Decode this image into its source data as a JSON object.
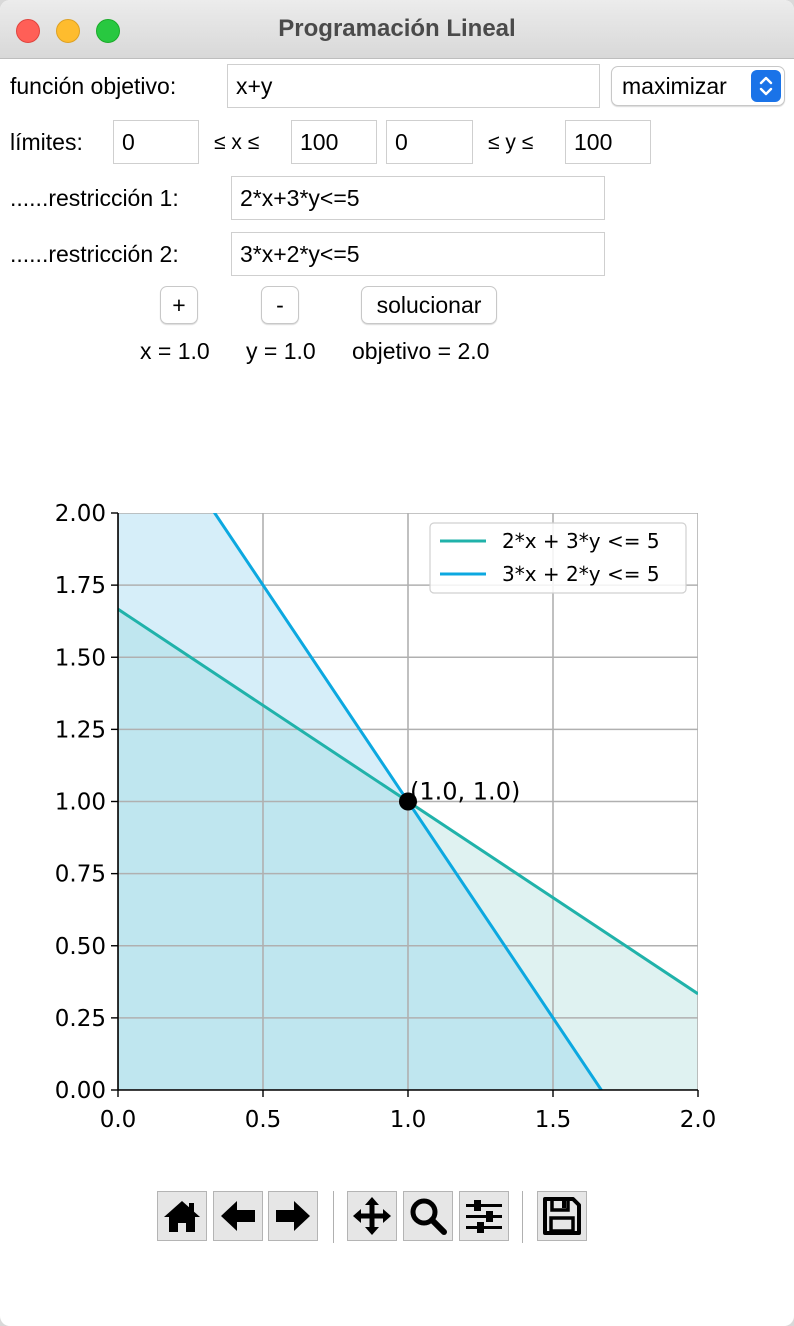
{
  "window": {
    "title": "Programación Lineal"
  },
  "objective": {
    "label": "función objetivo:",
    "value": "x+y",
    "mode": "maximizar"
  },
  "limits": {
    "label": "límites:",
    "x_min": "0",
    "x_symbol": "≤ x ≤",
    "x_max": "100",
    "y_min": "0",
    "y_symbol": "≤ y ≤",
    "y_max": "100"
  },
  "restrictions": [
    {
      "label": "......restricción 1:",
      "value": "2*x+3*y<=5"
    },
    {
      "label": "......restricción 2:",
      "value": "3*x+2*y<=5"
    }
  ],
  "buttons": {
    "add": "+",
    "remove": "-",
    "solve": "solucionar"
  },
  "result": {
    "x": "x = 1.0",
    "y": "y = 1.0",
    "objective": "objetivo = 2.0"
  },
  "chart_data": {
    "type": "line",
    "xlim": [
      0,
      2
    ],
    "ylim": [
      0,
      2
    ],
    "xticks": [
      "0.0",
      "0.5",
      "1.0",
      "1.5",
      "2.0"
    ],
    "yticks": [
      "0.00",
      "0.25",
      "0.50",
      "0.75",
      "1.00",
      "1.25",
      "1.50",
      "1.75",
      "2.00"
    ],
    "grid": true,
    "legend_position": "top-right",
    "series": [
      {
        "name": "2*x + 3*y <= 5",
        "a": 2,
        "b": 3,
        "c": 5,
        "color": "#20b2aa",
        "fill": "#dff2f1"
      },
      {
        "name": "3*x + 2*y <= 5",
        "a": 3,
        "b": 2,
        "c": 5,
        "color": "#0ca8e0",
        "fill": "#d6eef9"
      }
    ],
    "overlap_fill": "#bfe6ef",
    "solution_point": {
      "x": 1.0,
      "y": 1.0,
      "label": "(1.0, 1.0)"
    }
  },
  "toolbar": [
    "home-icon",
    "back-icon",
    "forward-icon",
    "pan-icon",
    "zoom-icon",
    "configure-icon",
    "save-icon"
  ]
}
